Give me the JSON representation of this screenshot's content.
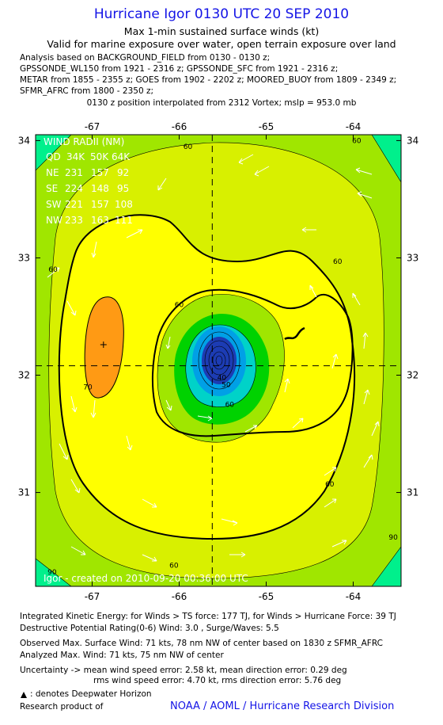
{
  "header": {
    "title": "Hurricane Igor 0130 UTC 20 SEP 2010",
    "subtitle1": "Max 1-min sustained surface winds (kt)",
    "subtitle2": "Valid for marine exposure over water, open terrain exposure over land"
  },
  "analysis_lines": [
    "Analysis based on BACKGROUND_FIELD from 0130 - 0130 z;",
    "GPSSONDE_WL150 from 1921 - 2316 z; GPSSONDE_SFC from 1921 - 2316 z;",
    "METAR from 1855 - 2355 z; GOES from 1902 - 2202 z; MOORED_BUOY from 1809 - 2349 z;",
    "SFMR_AFRC from 1800 - 2350 z;"
  ],
  "center_note": "0130 z position interpolated from 2312 Vortex; mslp = 953.0 mb",
  "chart_data": {
    "type": "contour",
    "x_ticks": [
      -67,
      -66,
      -65,
      -64
    ],
    "y_ticks": [
      31,
      32,
      33,
      34
    ],
    "xlim": [
      -67.65,
      -63.45
    ],
    "ylim": [
      30.2,
      34.05
    ],
    "storm_center": {
      "lon": -65.62,
      "lat": 32.08
    },
    "max_wind_marker": {
      "lon": -66.87,
      "lat": 32.26
    },
    "contour_levels": [
      10,
      20,
      30,
      40,
      50,
      60,
      70,
      80,
      90
    ],
    "contour_labels": [
      {
        "text": "60",
        "lon": -65.9,
        "lat": 33.93
      },
      {
        "text": "60",
        "lon": -67.45,
        "lat": 32.88
      },
      {
        "text": "60",
        "lon": -66.0,
        "lat": 32.58
      },
      {
        "text": "60",
        "lon": -64.18,
        "lat": 32.95
      },
      {
        "text": "60",
        "lon": -65.42,
        "lat": 31.73
      },
      {
        "text": "60",
        "lon": -64.27,
        "lat": 31.05
      },
      {
        "text": "60",
        "lon": -66.06,
        "lat": 30.36
      },
      {
        "text": "60",
        "lon": -63.96,
        "lat": 33.98
      },
      {
        "text": "70",
        "lon": -67.05,
        "lat": 31.88
      },
      {
        "text": "50",
        "lon": -65.46,
        "lat": 31.9
      },
      {
        "text": "40",
        "lon": -65.51,
        "lat": 31.96
      },
      {
        "text": "90",
        "lon": -67.46,
        "lat": 30.3
      },
      {
        "text": "90",
        "lon": -63.54,
        "lat": 30.6
      }
    ],
    "wind_radii": {
      "header": "WIND RADII (NM)",
      "columns": [
        "QD",
        "34K",
        "50K",
        "64K"
      ],
      "rows": [
        {
          "quadrant": "NE",
          "values": [
            "231",
            "157",
            "92"
          ]
        },
        {
          "quadrant": "SE",
          "values": [
            "224",
            "148",
            "95"
          ]
        },
        {
          "quadrant": "SW",
          "values": [
            "221",
            "157",
            "108"
          ]
        },
        {
          "quadrant": "NW",
          "values": [
            "233",
            "163",
            "111"
          ]
        }
      ]
    },
    "created_note": "Igor - created on 2010-09-20 00:36:00 UTC",
    "colors": {
      "band_below_30": "#1c3cb4",
      "band_30": "#00a0e6",
      "band_40": "#00d2c8",
      "band_50": "#00d200",
      "band_60": "#a0e600",
      "band_65": "#d8f000",
      "band_70": "#ffff00",
      "band_80": "#ff9a14",
      "band_90": "#00f08c",
      "axis_text": "#000000"
    }
  },
  "footer": {
    "line1": "Integrated Kinetic Energy:  for Winds > TS force: 177 TJ,  for Winds > Hurricane Force: 39 TJ",
    "line2": "Destructive Potential Rating(0-6)   Wind: 3.0 , Surge/Waves: 5.5",
    "line3": "Observed Max. Surface Wind: 71 kts, 78 nm NW of center based on 1830 z SFMR_AFRC",
    "line4": "Analyzed Max. Wind: 71 kts, 75 nm NW of center",
    "line5": "Uncertainty -> mean wind speed error: 2.58 kt,   mean direction error: 0.29 deg",
    "line6": "rms wind speed error: 4.70 kt,   rms direction error: 5.76 deg",
    "line7": ": denotes Deepwater Horizon",
    "research_label": "Research product of",
    "research_org": "NOAA / AOML / Hurricane Research Division"
  }
}
